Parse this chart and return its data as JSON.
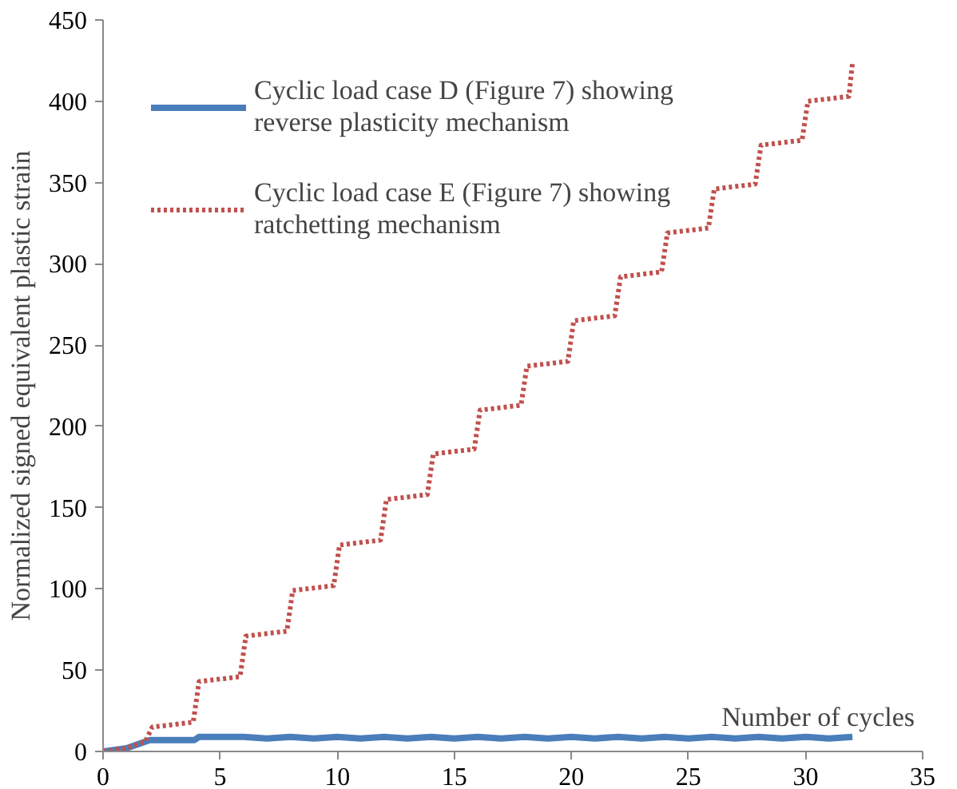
{
  "chart_data": {
    "type": "line",
    "xlabel": "Number of cycles",
    "ylabel": "Normalized signed equivalent plastic strain",
    "xlim": [
      0,
      35
    ],
    "xticks": [
      0,
      5,
      10,
      15,
      20,
      25,
      30,
      35
    ],
    "ylim": [
      0,
      450
    ],
    "yticks": [
      0,
      50,
      100,
      150,
      200,
      250,
      300,
      350,
      400,
      450
    ],
    "grid": false,
    "legend": "top left",
    "series": [
      {
        "name": "Cyclic load case D (Figure 7) showing reverse plasticity mechanism",
        "color": "#4a7ebb",
        "line_style": "solid",
        "x": [
          0,
          1,
          1.8,
          2,
          3.9,
          4.1,
          5,
          6,
          7,
          8,
          9,
          10,
          11,
          12,
          13,
          14,
          15,
          16,
          17,
          18,
          19,
          20,
          21,
          22,
          23,
          24,
          25,
          26,
          27,
          28,
          29,
          30,
          31,
          32
        ],
        "values": [
          0,
          2,
          6,
          7,
          7,
          9,
          9,
          9,
          8,
          9,
          8,
          9,
          8,
          9,
          8,
          9,
          8,
          9,
          8,
          9,
          8,
          9,
          8,
          9,
          8,
          9,
          8,
          9,
          8,
          9,
          8,
          9,
          8,
          9
        ]
      },
      {
        "name": "Cyclic load case E (Figure 7) showing ratchetting mechanism",
        "color": "#c0504d",
        "line_style": "dotted",
        "x": [
          0,
          1,
          1.8,
          2.1,
          3.85,
          4.1,
          5.85,
          6.1,
          7.85,
          8.1,
          9.85,
          10.1,
          11.85,
          12.1,
          13.85,
          14.1,
          15.85,
          16.1,
          17.85,
          18.1,
          19.85,
          20.1,
          21.85,
          22.1,
          23.85,
          24.1,
          25.85,
          26.1,
          27.85,
          28.1,
          29.85,
          30.1,
          31.85,
          32
        ],
        "values": [
          0,
          2,
          6,
          15,
          18,
          43,
          46,
          71,
          74,
          99,
          102,
          127,
          130,
          155,
          158,
          183,
          186,
          210,
          213,
          237,
          240,
          265,
          268,
          292,
          295,
          319,
          322,
          346,
          349,
          373,
          376,
          400,
          403,
          423
        ]
      }
    ]
  }
}
